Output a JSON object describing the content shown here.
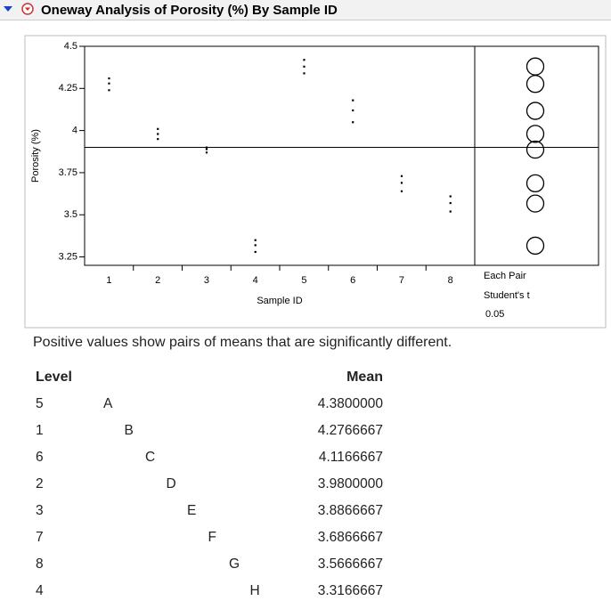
{
  "header": {
    "title": "Oneway Analysis of Porosity (%) By Sample ID"
  },
  "chart_data": {
    "type": "scatter",
    "ylabel": "Porosity (%)",
    "xlabel": "Sample ID",
    "categories": [
      "1",
      "2",
      "3",
      "4",
      "5",
      "6",
      "7",
      "8"
    ],
    "values": [
      [
        4.31,
        4.28,
        4.24
      ],
      [
        4.01,
        3.98,
        3.95
      ],
      [
        3.9,
        3.89,
        3.87
      ],
      [
        3.35,
        3.32,
        3.28
      ],
      [
        4.42,
        4.38,
        4.34
      ],
      [
        4.18,
        4.12,
        4.05
      ],
      [
        3.73,
        3.69,
        3.64
      ],
      [
        3.61,
        3.57,
        3.52
      ]
    ],
    "grand_mean": 3.9,
    "ylim": [
      3.2,
      4.5
    ],
    "yticks": [
      3.25,
      3.5,
      3.75,
      4,
      4.25,
      4.5
    ],
    "panel_labels": [
      "Each Pair",
      "Student's t",
      "0.05"
    ]
  },
  "table": {
    "note": "Positive values show pairs of means that are significantly different.",
    "columns": [
      "Level",
      "Mean"
    ],
    "rows": [
      [
        "5",
        "A",
        "4.3800000"
      ],
      [
        "1",
        "B",
        "4.2766667"
      ],
      [
        "6",
        "C",
        "4.1166667"
      ],
      [
        "2",
        "D",
        "3.9800000"
      ],
      [
        "3",
        "E",
        "3.8866667"
      ],
      [
        "7",
        "F",
        "3.6866667"
      ],
      [
        "8",
        "G",
        "3.5666667"
      ],
      [
        "4",
        "H",
        "3.3166667"
      ]
    ]
  }
}
